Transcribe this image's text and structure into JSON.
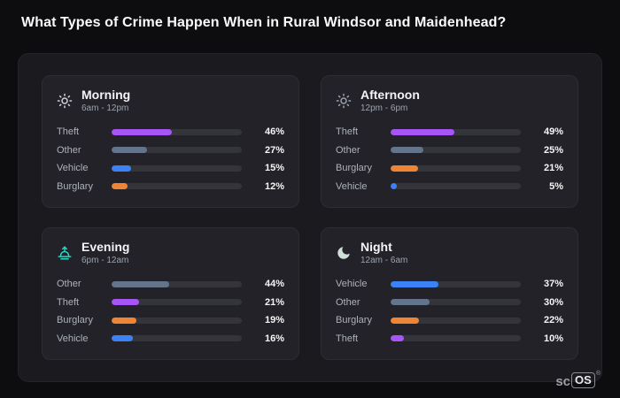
{
  "page": {
    "title": "What Types of Crime Happen When in Rural Windsor and Maidenhead?"
  },
  "logo": {
    "prefix": "sc",
    "boxed": "OS",
    "registered": "®"
  },
  "colors": {
    "theft": "#a855f7",
    "other": "#64748b",
    "vehicle": "#3b82f6",
    "burglary": "#ee8434",
    "bar_track": "#34343b",
    "panel_bg": "#1a1a1f",
    "card_bg": "#222228",
    "page_bg": "#0d0d10"
  },
  "chart_data": [
    {
      "type": "bar",
      "title": "Morning",
      "subtitle": "6am - 12pm",
      "icon": {
        "name": "sun-icon",
        "color": "#d1d5db"
      },
      "categories": [
        "Theft",
        "Other",
        "Vehicle",
        "Burglary"
      ],
      "values": [
        46,
        27,
        15,
        12
      ],
      "value_labels": [
        "46%",
        "27%",
        "15%",
        "12%"
      ],
      "bar_colors": [
        "#a855f7",
        "#64748b",
        "#3b82f6",
        "#ee8434"
      ],
      "xlim": [
        0,
        100
      ]
    },
    {
      "type": "bar",
      "title": "Afternoon",
      "subtitle": "12pm - 6pm",
      "icon": {
        "name": "sun-icon",
        "color": "#9ca3af"
      },
      "categories": [
        "Theft",
        "Other",
        "Burglary",
        "Vehicle"
      ],
      "values": [
        49,
        25,
        21,
        5
      ],
      "value_labels": [
        "49%",
        "25%",
        "21%",
        "5%"
      ],
      "bar_colors": [
        "#a855f7",
        "#64748b",
        "#ee8434",
        "#3b82f6"
      ],
      "xlim": [
        0,
        100
      ]
    },
    {
      "type": "bar",
      "title": "Evening",
      "subtitle": "6pm - 12am",
      "icon": {
        "name": "sunset-icon",
        "color": "#2dd4bf"
      },
      "categories": [
        "Other",
        "Theft",
        "Burglary",
        "Vehicle"
      ],
      "values": [
        44,
        21,
        19,
        16
      ],
      "value_labels": [
        "44%",
        "21%",
        "19%",
        "16%"
      ],
      "bar_colors": [
        "#64748b",
        "#a855f7",
        "#ee8434",
        "#3b82f6"
      ],
      "xlim": [
        0,
        100
      ]
    },
    {
      "type": "bar",
      "title": "Night",
      "subtitle": "12am - 6am",
      "icon": {
        "name": "moon-icon",
        "color": "#cfe0d8"
      },
      "categories": [
        "Vehicle",
        "Other",
        "Burglary",
        "Theft"
      ],
      "values": [
        37,
        30,
        22,
        10
      ],
      "value_labels": [
        "37%",
        "30%",
        "22%",
        "10%"
      ],
      "bar_colors": [
        "#3b82f6",
        "#64748b",
        "#ee8434",
        "#a855f7"
      ],
      "xlim": [
        0,
        100
      ]
    }
  ]
}
